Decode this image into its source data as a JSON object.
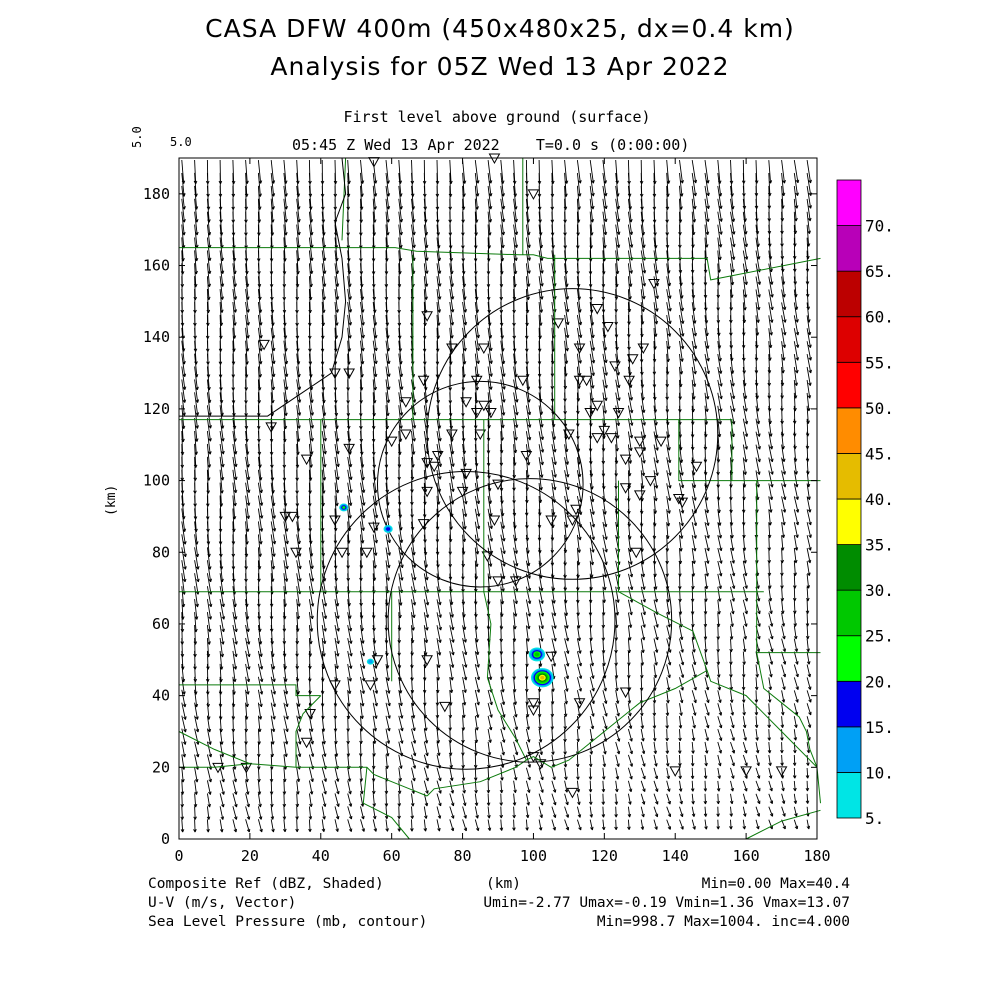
{
  "header": {
    "title_line1": "CASA DFW 400m (450x480x25, dx=0.4 km)",
    "title_line2": "Analysis for 05Z Wed 13 Apr 2022",
    "subtitle_line1": "First level above ground (surface)",
    "subtitle_line2": "05:45 Z Wed 13 Apr 2022    T=0.0 s (0:00:00)",
    "vector_scale_label": "5.0",
    "vector_scale_value": "5.0"
  },
  "footer": {
    "left_line1": "Composite Ref (dBZ, Shaded)",
    "left_line2": "U-V (m/s, Vector)",
    "left_line3": "Sea Level Pressure (mb, contour)",
    "center_line1": "(km)",
    "right_line1": "Min=0.00 Max=40.4",
    "right_line2": "Umin=-2.77 Umax=-0.19 Vmin=1.36 Vmax=13.07",
    "right_line3": "Min=998.7 Max=1004. inc=4.000"
  },
  "chart_data": {
    "type": "heatmap",
    "xlabel": "",
    "ylabel": "(km)",
    "xlim": [
      0,
      180
    ],
    "ylim": [
      0,
      190
    ],
    "x_ticks": [
      "0",
      "20",
      "40",
      "60",
      "80",
      "100",
      "120",
      "140",
      "160",
      "180"
    ],
    "y_ticks": [
      "0",
      "20",
      "40",
      "60",
      "80",
      "100",
      "120",
      "140",
      "160",
      "180"
    ],
    "colorbar": {
      "labels": [
        "5.",
        "10.",
        "15.",
        "20.",
        "25.",
        "30.",
        "35.",
        "40.",
        "45.",
        "50.",
        "55.",
        "60.",
        "65.",
        "70."
      ],
      "colors": [
        "#00e5e5",
        "#00a0f5",
        "#0000f0",
        "#00ff00",
        "#00c800",
        "#008c00",
        "#ffff00",
        "#e5bc00",
        "#ff8c00",
        "#ff0000",
        "#dd0000",
        "#bc0000",
        "#b800b8",
        "#ff00ff"
      ]
    },
    "wind_field": {
      "u_range": [
        -2.77,
        -0.19
      ],
      "v_range": [
        1.36,
        13.07
      ]
    },
    "radar_rings": [
      {
        "cx": 81,
        "cy": 61,
        "r": 42
      },
      {
        "cx": 111,
        "cy": 113,
        "r": 41
      },
      {
        "cx": 85,
        "cy": 99,
        "r": 29
      },
      {
        "cx": 99,
        "cy": 61,
        "r": 40
      }
    ],
    "reflectivity_cells": [
      {
        "x": 102.5,
        "y": 45,
        "r": 3.2,
        "dbz": 40
      },
      {
        "x": 101,
        "y": 51.5,
        "r": 2.3,
        "dbz": 25
      },
      {
        "x": 46.5,
        "y": 92.5,
        "r": 1.3,
        "dbz": 20
      },
      {
        "x": 59,
        "y": 86.5,
        "r": 1.3,
        "dbz": 15
      },
      {
        "x": 54,
        "y": 49.5,
        "r": 1.0,
        "dbz": 12
      }
    ],
    "pressure_contours": [
      {
        "points": [
          [
            46,
            190
          ],
          [
            47,
            180
          ],
          [
            44,
            172
          ],
          [
            46,
            162
          ],
          [
            47,
            150
          ],
          [
            46,
            140
          ],
          [
            43,
            130
          ],
          [
            34,
            124
          ],
          [
            25,
            118
          ],
          [
            12,
            118
          ],
          [
            0,
            118
          ]
        ]
      }
    ],
    "stations": [
      [
        55,
        189
      ],
      [
        89,
        190
      ],
      [
        100,
        180
      ],
      [
        134,
        155
      ],
      [
        118,
        148
      ],
      [
        70,
        146
      ],
      [
        107,
        144
      ],
      [
        121,
        143
      ],
      [
        24,
        138
      ],
      [
        77,
        137
      ],
      [
        86,
        137
      ],
      [
        113,
        137
      ],
      [
        131,
        137
      ],
      [
        128,
        134
      ],
      [
        123,
        132
      ],
      [
        44,
        130
      ],
      [
        48,
        130
      ],
      [
        69,
        128
      ],
      [
        84,
        128
      ],
      [
        97,
        128
      ],
      [
        113,
        128
      ],
      [
        115,
        128
      ],
      [
        127,
        128
      ],
      [
        64,
        122
      ],
      [
        81,
        122
      ],
      [
        86,
        121
      ],
      [
        84,
        119
      ],
      [
        88,
        119
      ],
      [
        116,
        119
      ],
      [
        124,
        119
      ],
      [
        118,
        121
      ],
      [
        110,
        113
      ],
      [
        120,
        114
      ],
      [
        136,
        111
      ],
      [
        26,
        115
      ],
      [
        77,
        113
      ],
      [
        64,
        113
      ],
      [
        85,
        113
      ],
      [
        118,
        112
      ],
      [
        122,
        112
      ],
      [
        130,
        111
      ],
      [
        60,
        111
      ],
      [
        48,
        109
      ],
      [
        73,
        107
      ],
      [
        98,
        107
      ],
      [
        126,
        106
      ],
      [
        130,
        108
      ],
      [
        36,
        106
      ],
      [
        70,
        105
      ],
      [
        72,
        104
      ],
      [
        81,
        102
      ],
      [
        133,
        100
      ],
      [
        146,
        104
      ],
      [
        141,
        95
      ],
      [
        90,
        99
      ],
      [
        70,
        97
      ],
      [
        80,
        97
      ],
      [
        126,
        98
      ],
      [
        142,
        94
      ],
      [
        130,
        96
      ],
      [
        112,
        92
      ],
      [
        30,
        90
      ],
      [
        32,
        90
      ],
      [
        44,
        89
      ],
      [
        55,
        87
      ],
      [
        69,
        88
      ],
      [
        111,
        89
      ],
      [
        105,
        89
      ],
      [
        89,
        89
      ],
      [
        33,
        80
      ],
      [
        46,
        80
      ],
      [
        53,
        80
      ],
      [
        87,
        79
      ],
      [
        129,
        80
      ],
      [
        90,
        72
      ],
      [
        95,
        72
      ],
      [
        105,
        51
      ],
      [
        56,
        50
      ],
      [
        70,
        50
      ],
      [
        44,
        43
      ],
      [
        54,
        43
      ],
      [
        100,
        38
      ],
      [
        100,
        36
      ],
      [
        113,
        38
      ],
      [
        126,
        41
      ],
      [
        75,
        37
      ],
      [
        37,
        35
      ],
      [
        36,
        27
      ],
      [
        100,
        23
      ],
      [
        102,
        21
      ],
      [
        19,
        20
      ],
      [
        11,
        20
      ],
      [
        140,
        19
      ],
      [
        170,
        19
      ],
      [
        160,
        19
      ],
      [
        111,
        13
      ]
    ],
    "boundaries": [
      [
        [
          0,
          165
        ],
        [
          61,
          165
        ],
        [
          67,
          164
        ],
        [
          96,
          163
        ],
        [
          100,
          163
        ],
        [
          104,
          162
        ],
        [
          149,
          162
        ],
        [
          150,
          156
        ],
        [
          181,
          162
        ]
      ],
      [
        [
          47,
          190
        ],
        [
          46,
          167
        ]
      ],
      [
        [
          0,
          117
        ],
        [
          156,
          117
        ],
        [
          156,
          100
        ],
        [
          170,
          100
        ],
        [
          181,
          100
        ]
      ],
      [
        [
          40,
          117
        ],
        [
          40,
          69
        ],
        [
          0,
          69
        ]
      ],
      [
        [
          40,
          69
        ],
        [
          165,
          69
        ]
      ],
      [
        [
          66,
          163
        ],
        [
          66,
          117
        ]
      ],
      [
        [
          97,
          190
        ],
        [
          97,
          163
        ]
      ],
      [
        [
          106,
          163
        ],
        [
          106,
          117
        ]
      ],
      [
        [
          141,
          117
        ],
        [
          141,
          100
        ],
        [
          156,
          100
        ]
      ],
      [
        [
          124,
          100
        ],
        [
          124,
          69
        ]
      ],
      [
        [
          86,
          117
        ],
        [
          86,
          69
        ]
      ],
      [
        [
          163,
          100
        ],
        [
          163,
          52
        ],
        [
          181,
          52
        ]
      ],
      [
        [
          60,
          69
        ],
        [
          60,
          52
        ],
        [
          60,
          44
        ]
      ],
      [
        [
          0,
          43
        ],
        [
          33,
          43
        ],
        [
          33,
          40
        ],
        [
          40,
          40
        ]
      ],
      [
        [
          0,
          30
        ],
        [
          10,
          25
        ],
        [
          20,
          21
        ],
        [
          33,
          20
        ]
      ],
      [
        [
          33,
          20
        ],
        [
          53,
          20
        ],
        [
          55,
          18
        ],
        [
          60,
          16
        ],
        [
          65,
          14
        ],
        [
          70,
          12
        ]
      ],
      [
        [
          70,
          12
        ],
        [
          72,
          14
        ],
        [
          85,
          16
        ],
        [
          95,
          20
        ],
        [
          98,
          22
        ],
        [
          100,
          23
        ],
        [
          105,
          20
        ],
        [
          110,
          22
        ],
        [
          120,
          30
        ],
        [
          130,
          38
        ],
        [
          140,
          42
        ],
        [
          149,
          47
        ],
        [
          150,
          44
        ],
        [
          160,
          40
        ],
        [
          170,
          30
        ],
        [
          180,
          20
        ],
        [
          181,
          10
        ]
      ],
      [
        [
          86,
          69
        ],
        [
          88,
          60
        ],
        [
          87,
          45
        ],
        [
          90,
          36
        ],
        [
          95,
          28
        ],
        [
          98,
          22
        ]
      ],
      [
        [
          124,
          69
        ],
        [
          135,
          63
        ],
        [
          145,
          58
        ],
        [
          149,
          47
        ]
      ],
      [
        [
          163,
          52
        ],
        [
          165,
          42
        ],
        [
          170,
          38
        ],
        [
          175,
          34
        ],
        [
          177,
          30
        ],
        [
          178,
          25
        ],
        [
          180,
          20
        ]
      ],
      [
        [
          33,
          20
        ],
        [
          33,
          30
        ],
        [
          35,
          35
        ],
        [
          40,
          40
        ]
      ],
      [
        [
          53,
          20
        ],
        [
          52,
          10
        ],
        [
          56,
          8
        ],
        [
          60,
          6
        ],
        [
          65,
          0
        ]
      ],
      [
        [
          0,
          20
        ],
        [
          10,
          20
        ],
        [
          20,
          21
        ]
      ],
      [
        [
          160,
          0
        ],
        [
          170,
          5
        ],
        [
          181,
          8
        ]
      ]
    ]
  }
}
